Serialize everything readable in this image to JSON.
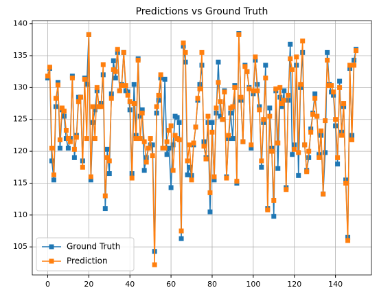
{
  "chart_data": {
    "type": "line",
    "title": "Predictions vs Ground Truth",
    "x": [
      0,
      1,
      2,
      3,
      4,
      5,
      6,
      7,
      8,
      9,
      10,
      11,
      12,
      13,
      14,
      15,
      16,
      17,
      18,
      19,
      20,
      21,
      22,
      23,
      24,
      25,
      26,
      27,
      28,
      29,
      30,
      31,
      32,
      33,
      34,
      35,
      36,
      37,
      38,
      39,
      40,
      41,
      42,
      43,
      44,
      45,
      46,
      47,
      48,
      49,
      50,
      51,
      52,
      53,
      54,
      55,
      56,
      57,
      58,
      59,
      60,
      61,
      62,
      63,
      64,
      65,
      66,
      67,
      68,
      69,
      70,
      71,
      72,
      73,
      74,
      75,
      76,
      77,
      78,
      79,
      80,
      81,
      82,
      83,
      84,
      85,
      86,
      87,
      88,
      89,
      90,
      91,
      92,
      93,
      94,
      95,
      96,
      97,
      98,
      99,
      100,
      101,
      102,
      103,
      104,
      105,
      106,
      107,
      108,
      109,
      110,
      111,
      112,
      113,
      114,
      115,
      116,
      117,
      118,
      119,
      120,
      121,
      122,
      123,
      124,
      125,
      126,
      127,
      128,
      129,
      130,
      131,
      132,
      133,
      134,
      135,
      136,
      137,
      138,
      139,
      140,
      141,
      142,
      143,
      144,
      145,
      146,
      147,
      148,
      149,
      150
    ],
    "series": [
      {
        "name": "Ground Truth",
        "color": "#1f77b4",
        "values": [
          131.5,
          133,
          118.5,
          115.5,
          127,
          130.8,
          120.5,
          126.5,
          125.5,
          122,
          120.5,
          122,
          131.8,
          119,
          122.5,
          128.5,
          128.5,
          118.5,
          131.5,
          130.5,
          138.3,
          115.5,
          124.5,
          126.5,
          129.5,
          127,
          127.5,
          132,
          111,
          120.3,
          116.5,
          129,
          134.2,
          131.5,
          135.5,
          129.5,
          130.5,
          135.5,
          129.5,
          129.3,
          126.5,
          116.5,
          130.5,
          122.5,
          134.5,
          125.5,
          126.5,
          117,
          119,
          120.5,
          121,
          121,
          104.3,
          126,
          128,
          131.5,
          120.5,
          131.3,
          119.5,
          120.5,
          114.3,
          121,
          125.5,
          125.3,
          124.5,
          106.3,
          136.5,
          134,
          116.3,
          117.5,
          116.2,
          121,
          123.8,
          128,
          130.5,
          133.5,
          121.5,
          119,
          124.5,
          110.5,
          124.5,
          115.5,
          126,
          134,
          125.5,
          125,
          129.5,
          116,
          122,
          126,
          122,
          130.3,
          115,
          138.5,
          128,
          121.5,
          133.5,
          132.5,
          130,
          120.5,
          129,
          134.3,
          130.5,
          127,
          117.5,
          124.5,
          133.5,
          111,
          126.8,
          120.5,
          109.8,
          129.5,
          117.3,
          128.5,
          127,
          129.5,
          114.3,
          128,
          136.8,
          119.5,
          121,
          133.5,
          116.2,
          130,
          135.5,
          121,
          117,
          119,
          123.5,
          126,
          129,
          125.5,
          119.5,
          122.5,
          113.3,
          119.8,
          135.5,
          130.5,
          129.3,
          128.8,
          124,
          118,
          131,
          123,
          127,
          115.5,
          106.5,
          133,
          122.5,
          134.3,
          136
        ]
      },
      {
        "name": "Prediction",
        "color": "#ff7f0e",
        "values": [
          131.8,
          133.2,
          120.5,
          116.3,
          128.3,
          130.4,
          121.8,
          126.8,
          126.3,
          123.3,
          122,
          121.5,
          131.5,
          120.3,
          122.2,
          127.8,
          128.5,
          117.5,
          131.3,
          122,
          138.3,
          116,
          127,
          122,
          130,
          127,
          127,
          133.6,
          113,
          119,
          118.5,
          128.3,
          132.8,
          132.5,
          136,
          129.5,
          130.3,
          135.5,
          130.3,
          128.8,
          127.8,
          115.8,
          127.5,
          122,
          134.3,
          122,
          126,
          121.5,
          118.3,
          120.5,
          122,
          119.3,
          102.2,
          127,
          128.8,
          132,
          120.5,
          120.5,
          121.5,
          123.3,
          124,
          117,
          122.5,
          122,
          121.8,
          107.5,
          137,
          135.5,
          118.5,
          121,
          115.5,
          121.3,
          123.8,
          128.3,
          129.8,
          135.5,
          120.8,
          118.8,
          125.5,
          113.5,
          123,
          116,
          126.8,
          130.8,
          127.8,
          125,
          129.3,
          115.8,
          122.5,
          126.8,
          127,
          130,
          115.3,
          138.3,
          128.5,
          121.5,
          133.3,
          132.5,
          129.8,
          121,
          129.5,
          134.8,
          129.5,
          126.5,
          118.5,
          125,
          131.5,
          110.8,
          125.5,
          120,
          112.3,
          129.8,
          121.3,
          130,
          127.5,
          128,
          114,
          128.8,
          134.5,
          132.8,
          120.3,
          134.8,
          119.8,
          130.5,
          137.3,
          121,
          116.8,
          120,
          123,
          125.8,
          128.3,
          125.5,
          119,
          123.2,
          113.3,
          124.8,
          134.3,
          130.3,
          130.3,
          129.3,
          125,
          119,
          130,
          122.5,
          127.5,
          115,
          106,
          133.5,
          121.8,
          133.5,
          135.8
        ]
      }
    ],
    "xlim": [
      -7.5,
      157.5
    ],
    "xticks": [
      0,
      20,
      40,
      60,
      80,
      100,
      120,
      140
    ],
    "ylim": [
      100.6,
      140.5
    ],
    "yticks": [
      105,
      110,
      115,
      120,
      125,
      130,
      135,
      140
    ],
    "grid": true,
    "legend": "lower left",
    "marker": "square"
  }
}
